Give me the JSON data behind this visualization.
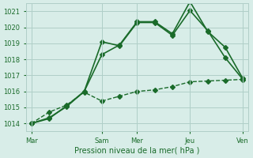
{
  "background_color": "#d8ede8",
  "grid_color": "#b0cfc8",
  "line_color": "#1a6b2a",
  "text_color": "#1a6b2a",
  "xlabel": "Pression niveau de la mer( hPa )",
  "ylim": [
    1013.5,
    1021.5
  ],
  "yticks": [
    1014,
    1015,
    1016,
    1017,
    1018,
    1019,
    1020,
    1021
  ],
  "x_day_labels": [
    "Mar",
    "Sam",
    "Mer",
    "Jeu",
    "Ven"
  ],
  "x_day_positions": [
    0,
    4,
    6,
    9,
    12
  ],
  "series": [
    {
      "x": [
        0,
        1,
        2,
        3,
        4,
        5,
        6,
        7,
        8,
        9,
        10,
        11,
        12
      ],
      "y": [
        1014.0,
        1014.3,
        1015.1,
        1016.0,
        1019.1,
        1018.85,
        1020.3,
        1020.3,
        1019.5,
        1021.05,
        1019.8,
        1018.1,
        1016.75
      ],
      "style": "-",
      "marker": "D",
      "markersize": 3,
      "linewidth": 1.2
    },
    {
      "x": [
        0,
        1,
        2,
        3,
        4,
        5,
        6,
        7,
        8,
        9,
        10,
        11,
        12
      ],
      "y": [
        1014.0,
        1014.35,
        1015.05,
        1016.0,
        1018.3,
        1018.9,
        1020.35,
        1020.35,
        1019.6,
        1021.6,
        1019.75,
        1018.75,
        1016.8
      ],
      "style": "-",
      "marker": "D",
      "markersize": 3,
      "linewidth": 1.2
    },
    {
      "x": [
        0,
        1,
        2,
        3,
        4,
        5,
        6,
        7,
        8,
        9,
        10,
        11,
        12
      ],
      "y": [
        1014.0,
        1014.7,
        1015.15,
        1015.95,
        1015.4,
        1015.7,
        1016.0,
        1016.1,
        1016.3,
        1016.6,
        1016.65,
        1016.7,
        1016.75
      ],
      "style": "--",
      "marker": "D",
      "markersize": 3,
      "linewidth": 1.0
    }
  ]
}
